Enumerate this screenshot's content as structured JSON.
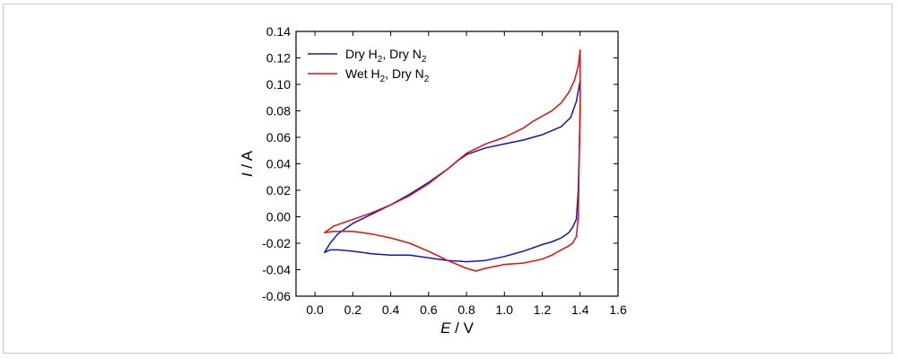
{
  "chart_data": {
    "type": "line",
    "xlabel_var": "E",
    "xlabel_unit": " / V",
    "ylabel_var": "I",
    "ylabel_unit": " / A",
    "xlim": [
      -0.1,
      1.6
    ],
    "ylim": [
      -0.06,
      0.14
    ],
    "x_ticks": [
      "0.0",
      "0.2",
      "0.4",
      "0.6",
      "0.8",
      "1.0",
      "1.2",
      "1.4",
      "1.6"
    ],
    "y_ticks": [
      "-0.06",
      "-0.04",
      "-0.02",
      "0.00",
      "0.02",
      "0.04",
      "0.06",
      "0.08",
      "0.10",
      "0.12",
      "0.14"
    ],
    "legend_position": "top-left",
    "series": [
      {
        "legend": [
          {
            "text": "Dry H",
            "sub": "2"
          },
          {
            "text": ",  Dry N",
            "sub": "2"
          }
        ],
        "color": "#1515b5",
        "x": [
          0.05,
          0.08,
          0.12,
          0.2,
          0.3,
          0.4,
          0.5,
          0.6,
          0.7,
          0.75,
          0.8,
          0.9,
          1.0,
          1.1,
          1.2,
          1.3,
          1.35,
          1.38,
          1.4,
          1.4,
          1.39,
          1.38,
          1.36,
          1.34,
          1.3,
          1.25,
          1.2,
          1.1,
          1.0,
          0.9,
          0.8,
          0.7,
          0.6,
          0.5,
          0.4,
          0.3,
          0.2,
          0.12,
          0.08,
          0.05
        ],
        "y": [
          -0.027,
          -0.02,
          -0.013,
          -0.005,
          0.002,
          0.009,
          0.017,
          0.026,
          0.036,
          0.042,
          0.047,
          0.052,
          0.055,
          0.058,
          0.062,
          0.068,
          0.075,
          0.087,
          0.103,
          0.08,
          0.02,
          -0.002,
          -0.008,
          -0.012,
          -0.016,
          -0.019,
          -0.021,
          -0.026,
          -0.03,
          -0.033,
          -0.034,
          -0.033,
          -0.031,
          -0.029,
          -0.029,
          -0.028,
          -0.026,
          -0.025,
          -0.025,
          -0.027
        ]
      },
      {
        "legend": [
          {
            "text": "Wet H",
            "sub": "2"
          },
          {
            "text": ",  Dry N",
            "sub": "2"
          }
        ],
        "color": "#e01010",
        "x": [
          0.05,
          0.1,
          0.2,
          0.3,
          0.4,
          0.5,
          0.6,
          0.7,
          0.8,
          0.9,
          1.0,
          1.1,
          1.15,
          1.2,
          1.25,
          1.3,
          1.34,
          1.37,
          1.39,
          1.4,
          1.4,
          1.39,
          1.38,
          1.36,
          1.34,
          1.3,
          1.25,
          1.2,
          1.1,
          1.0,
          0.9,
          0.85,
          0.8,
          0.7,
          0.6,
          0.5,
          0.4,
          0.3,
          0.2,
          0.1,
          0.05
        ],
        "y": [
          -0.012,
          -0.007,
          -0.002,
          0.003,
          0.009,
          0.016,
          0.025,
          0.036,
          0.048,
          0.055,
          0.06,
          0.067,
          0.072,
          0.076,
          0.08,
          0.086,
          0.094,
          0.103,
          0.114,
          0.126,
          0.089,
          0.0,
          -0.015,
          -0.02,
          -0.022,
          -0.025,
          -0.029,
          -0.032,
          -0.035,
          -0.036,
          -0.039,
          -0.041,
          -0.039,
          -0.033,
          -0.026,
          -0.02,
          -0.016,
          -0.013,
          -0.011,
          -0.011,
          -0.012
        ]
      }
    ]
  }
}
